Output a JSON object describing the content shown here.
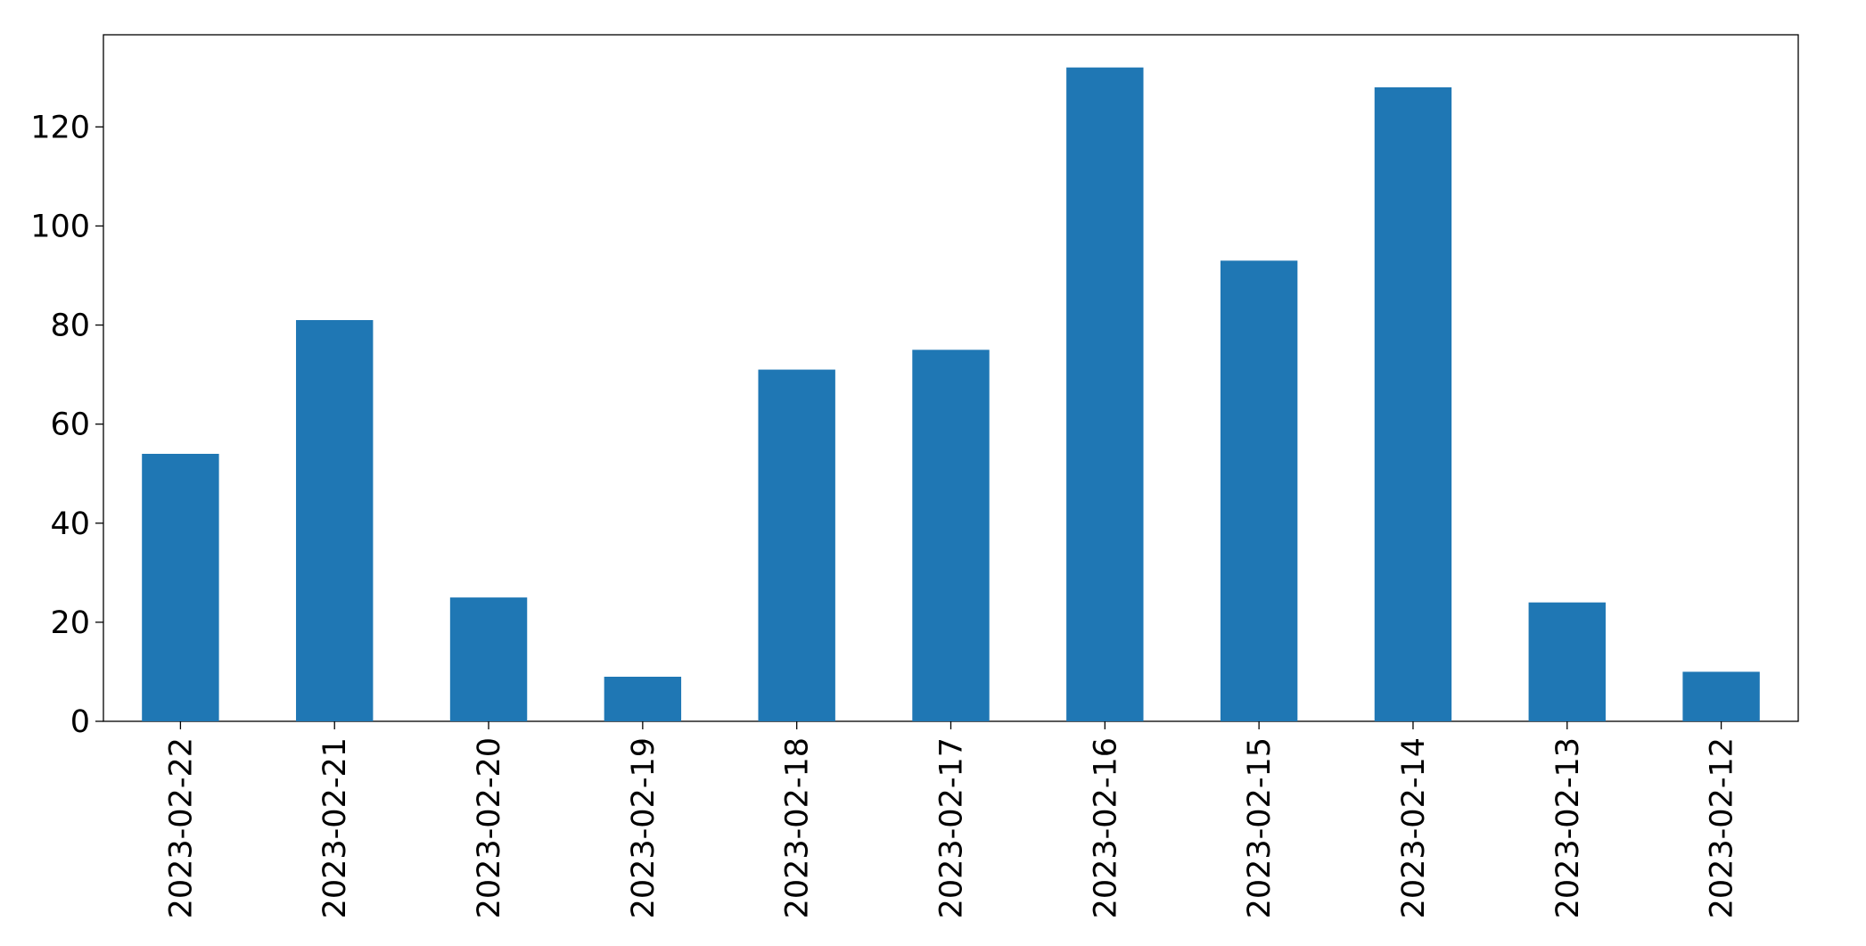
{
  "chart_data": {
    "type": "bar",
    "categories": [
      "2023-02-22",
      "2023-02-21",
      "2023-02-20",
      "2023-02-19",
      "2023-02-18",
      "2023-02-17",
      "2023-02-16",
      "2023-02-15",
      "2023-02-14",
      "2023-02-13",
      "2023-02-12"
    ],
    "values": [
      54,
      81,
      25,
      9,
      71,
      75,
      132,
      93,
      128,
      24,
      10
    ],
    "color": "#1f77b4",
    "ylim": [
      0,
      138.6
    ],
    "yticks": [
      0,
      20,
      40,
      60,
      80,
      100,
      120
    ],
    "grid": false
  }
}
